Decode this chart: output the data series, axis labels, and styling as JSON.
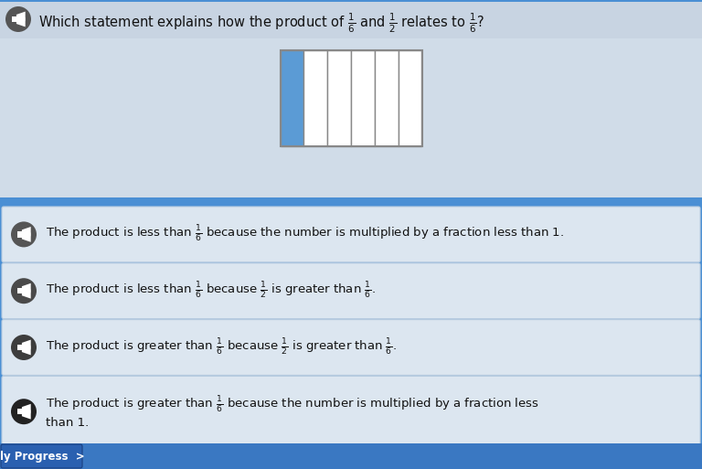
{
  "bg_main": "#4a8fd4",
  "bg_question_strip": "#c8d8e8",
  "bg_question_area": "#d0dce8",
  "bg_answer": "#dce6f0",
  "bg_answer_border": "#b8cce0",
  "bg_blue_divider": "#4a8fd4",
  "bg_bottom_bar": "#3a78c2",
  "text_color": "#111111",
  "question_text": "Which statement explains how the product of $\\frac{1}{6}$ and $\\frac{1}{2}$ relates to $\\frac{1}{6}$?",
  "answers": [
    "The product is less than $\\frac{1}{6}$ because the number is multiplied by a fraction less than 1.",
    "The product is less than $\\frac{1}{6}$ because $\\frac{1}{2}$ is greater than $\\frac{1}{6}$.",
    "The product is greater than $\\frac{1}{6}$ because $\\frac{1}{2}$ is greater than $\\frac{1}{6}$.",
    "The product is greater than $\\frac{1}{6}$ because the number is multiplied by a fraction less\nthan 1."
  ],
  "box_fill_color": "#5b9bd5",
  "box_line_color": "#888888",
  "num_columns": 6,
  "speaker_q_bg": "#555555",
  "speaker_ans_colors": [
    "#555555",
    "#4a4a4a",
    "#3a3a3a",
    "#222222"
  ],
  "progress_text": "ly Progress  >",
  "progress_bg": "#2a60b0",
  "progress_bar_bg": "#3a78c2"
}
